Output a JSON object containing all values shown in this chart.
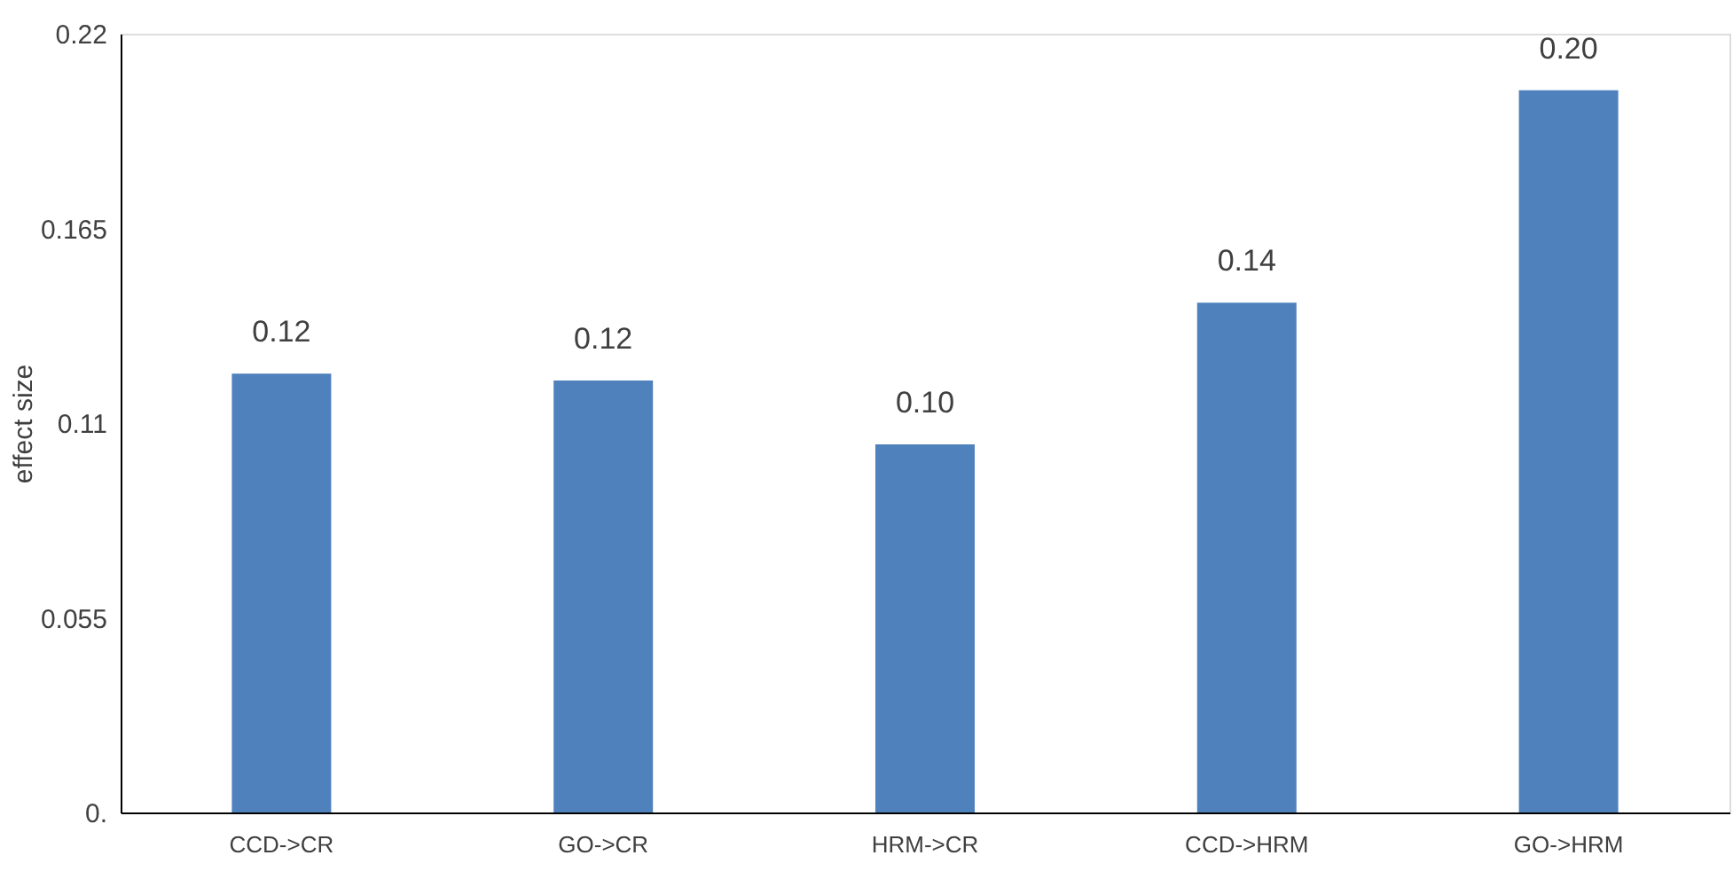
{
  "chart_data": {
    "type": "bar",
    "ylabel": "effect size",
    "categories": [
      "CCD->CR",
      "GO->CR",
      "HRM->CR",
      "CCD->HRM",
      "GO->HRM"
    ],
    "values": [
      0.124,
      0.122,
      0.104,
      0.144,
      0.204
    ],
    "value_labels": [
      "0.12",
      "0.12",
      "0.10",
      "0.14",
      "0.20"
    ],
    "color": "#4f81bd",
    "ylim": [
      0,
      0.22
    ],
    "yticks": [
      {
        "value": 0,
        "label": "0."
      },
      0.055,
      0.11,
      0.165,
      0.22
    ],
    "grid": false
  }
}
